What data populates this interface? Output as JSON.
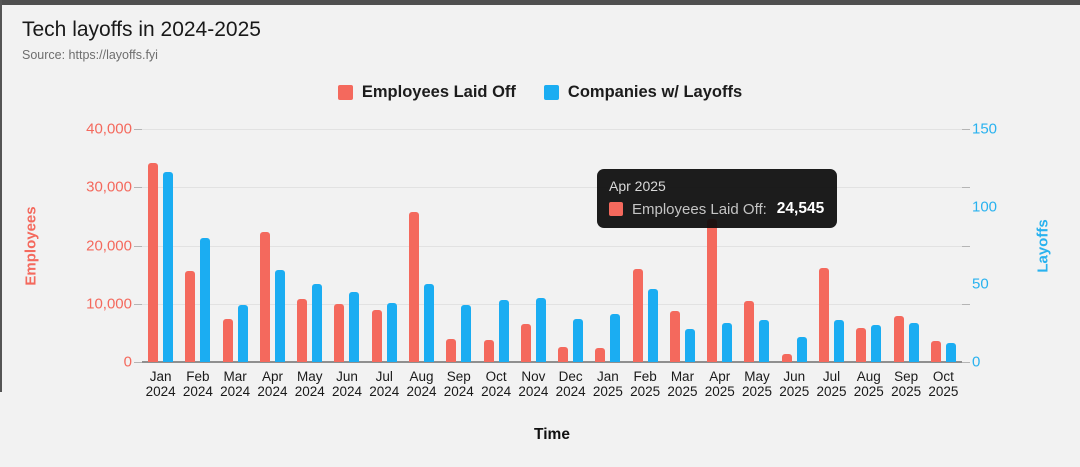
{
  "header": {
    "title": "Tech layoffs in 2024-2025",
    "source": "Source: https://layoffs.fyi"
  },
  "legend": {
    "items": [
      {
        "label": "Employees Laid Off",
        "color": "#f4695d"
      },
      {
        "label": "Companies w/ Layoffs",
        "color": "#1badf2"
      }
    ]
  },
  "tooltip": {
    "title": "Apr 2025",
    "label": "Employees Laid Off:",
    "value": "24,545",
    "color": "#f4695d"
  },
  "chart_data": {
    "type": "bar",
    "title": "Tech layoffs in 2024-2025",
    "subtitle": "Source: https://layoffs.fyi",
    "xlabel": "Time",
    "legend_position": "top",
    "grid": true,
    "categories": [
      "Jan 2024",
      "Feb 2024",
      "Mar 2024",
      "Apr 2024",
      "May 2024",
      "Jun 2024",
      "Jul 2024",
      "Aug 2024",
      "Sep 2024",
      "Oct 2024",
      "Nov 2024",
      "Dec 2024",
      "Jan 2025",
      "Feb 2025",
      "Mar 2025",
      "Apr 2025",
      "May 2025",
      "Jun 2025",
      "Jul 2025",
      "Aug 2025",
      "Sep 2025",
      "Oct 2025"
    ],
    "series": [
      {
        "name": "Employees Laid Off",
        "axis": "left",
        "color": "#f4695d",
        "values": [
          34100,
          15600,
          7300,
          22300,
          10800,
          10000,
          9000,
          25700,
          3950,
          3800,
          6500,
          2500,
          2350,
          15950,
          8800,
          24545,
          10400,
          1400,
          16100,
          5850,
          7850,
          3600
        ]
      },
      {
        "name": "Companies w/ Layoffs",
        "axis": "right",
        "color": "#1badf2",
        "values": [
          122,
          80,
          37,
          59,
          50,
          45,
          38,
          50,
          37,
          40,
          41,
          28,
          31,
          47,
          21,
          25,
          27,
          16,
          27,
          24,
          25,
          12
        ]
      }
    ],
    "left_axis": {
      "label": "Employees",
      "min": 0,
      "max": 40000,
      "ticks": [
        "40,000",
        "30,000",
        "20,000",
        "10,000",
        "0"
      ],
      "color": "#f4695d"
    },
    "right_axis": {
      "label": "Layoffs",
      "min": 0,
      "max": 150,
      "ticks": [
        "150",
        "100",
        "50",
        "0"
      ],
      "color": "#29b2ef"
    },
    "annotations": [
      {
        "type": "tooltip",
        "category": "Apr 2025",
        "series": "Employees Laid Off",
        "value": 24545
      }
    ]
  }
}
